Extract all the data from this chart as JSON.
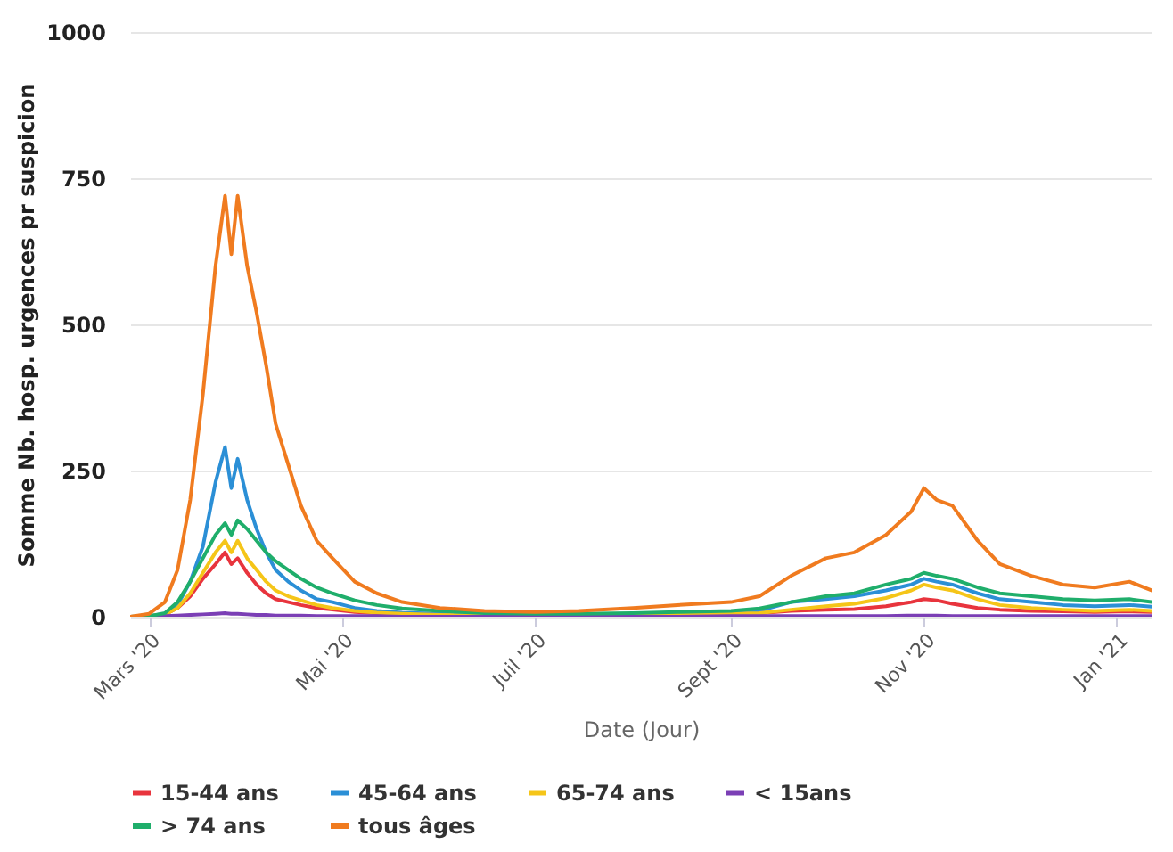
{
  "chart_data": {
    "type": "line",
    "xlabel": "Date (Jour)",
    "ylabel": "Somme Nb. hosp. urgences pr suspicion",
    "x": [
      "2020-02-24",
      "2020-03-01",
      "2020-03-06",
      "2020-03-10",
      "2020-03-14",
      "2020-03-18",
      "2020-03-22",
      "2020-03-25",
      "2020-03-27",
      "2020-03-29",
      "2020-04-01",
      "2020-04-04",
      "2020-04-07",
      "2020-04-10",
      "2020-04-14",
      "2020-04-18",
      "2020-04-23",
      "2020-04-28",
      "2020-05-05",
      "2020-05-12",
      "2020-05-20",
      "2020-06-01",
      "2020-06-15",
      "2020-07-01",
      "2020-07-15",
      "2020-08-01",
      "2020-08-15",
      "2020-09-01",
      "2020-09-10",
      "2020-09-20",
      "2020-10-01",
      "2020-10-10",
      "2020-10-20",
      "2020-10-28",
      "2020-11-01",
      "2020-11-05",
      "2020-11-10",
      "2020-11-18",
      "2020-11-25",
      "2020-12-05",
      "2020-12-15",
      "2020-12-25",
      "2021-01-05",
      "2021-01-12"
    ],
    "series": [
      {
        "name": "15-44 ans",
        "color": "#e8343d",
        "values": [
          null,
          null,
          4,
          15,
          35,
          65,
          90,
          110,
          90,
          100,
          75,
          55,
          40,
          30,
          25,
          20,
          15,
          12,
          8,
          6,
          4,
          3,
          2,
          2,
          2,
          3,
          4,
          5,
          6,
          10,
          12,
          13,
          18,
          25,
          30,
          28,
          22,
          15,
          12,
          10,
          9,
          8,
          9,
          8
        ]
      },
      {
        "name": "45-64 ans",
        "color": "#2b8fd6",
        "values": [
          0,
          1,
          5,
          20,
          60,
          120,
          230,
          290,
          220,
          270,
          200,
          150,
          110,
          80,
          60,
          45,
          30,
          25,
          15,
          10,
          7,
          5,
          3,
          3,
          3,
          5,
          5,
          7,
          10,
          25,
          30,
          35,
          45,
          55,
          65,
          60,
          55,
          40,
          30,
          25,
          20,
          18,
          20,
          17
        ]
      },
      {
        "name": "65-74 ans",
        "color": "#f5c518",
        "values": [
          0,
          1,
          4,
          15,
          40,
          75,
          110,
          130,
          110,
          130,
          100,
          80,
          60,
          45,
          35,
          28,
          20,
          15,
          10,
          7,
          5,
          3,
          2,
          2,
          2,
          3,
          4,
          5,
          6,
          12,
          18,
          22,
          32,
          45,
          55,
          50,
          45,
          30,
          20,
          15,
          12,
          10,
          12,
          10
        ]
      },
      {
        "name": "< 15ans",
        "color": "#7b3fb5",
        "values": [
          0,
          0,
          1,
          2,
          3,
          4,
          5,
          6,
          5,
          5,
          4,
          3,
          3,
          2,
          2,
          2,
          1,
          1,
          1,
          1,
          0,
          0,
          0,
          0,
          0,
          0,
          0,
          1,
          1,
          1,
          1,
          1,
          1,
          2,
          2,
          2,
          1,
          1,
          1,
          1,
          1,
          1,
          1,
          1
        ]
      },
      {
        "name": "> 74 ans",
        "color": "#1fae6b",
        "values": [
          0,
          1,
          6,
          25,
          60,
          100,
          140,
          160,
          140,
          165,
          150,
          130,
          110,
          95,
          80,
          65,
          50,
          40,
          28,
          20,
          14,
          10,
          6,
          5,
          5,
          6,
          8,
          10,
          14,
          25,
          35,
          40,
          55,
          65,
          75,
          70,
          65,
          50,
          40,
          35,
          30,
          28,
          30,
          25
        ]
      },
      {
        "name": "tous âges",
        "color": "#f07b1f",
        "values": [
          0,
          5,
          25,
          80,
          200,
          380,
          600,
          720,
          620,
          720,
          600,
          520,
          430,
          330,
          260,
          190,
          130,
          100,
          60,
          40,
          25,
          15,
          10,
          8,
          10,
          15,
          20,
          25,
          35,
          70,
          100,
          110,
          140,
          180,
          220,
          200,
          190,
          130,
          90,
          70,
          55,
          50,
          60,
          45
        ]
      }
    ],
    "xlim": [
      "2020-02-24",
      "2021-01-12"
    ],
    "xticks": [
      {
        "value": "2020-03-01",
        "label": "Mars '20"
      },
      {
        "value": "2020-05-01",
        "label": "Mai '20"
      },
      {
        "value": "2020-07-01",
        "label": "Juil '20"
      },
      {
        "value": "2020-09-01",
        "label": "Sept '20"
      },
      {
        "value": "2020-11-01",
        "label": "Nov '20"
      },
      {
        "value": "2021-01-01",
        "label": "Jan '21"
      }
    ],
    "ylim": [
      0,
      1000
    ],
    "yticks": [
      0,
      250,
      500,
      750,
      1000
    ],
    "grid": "y",
    "legend": "bottom",
    "line_style": "solid",
    "marker": "none"
  }
}
